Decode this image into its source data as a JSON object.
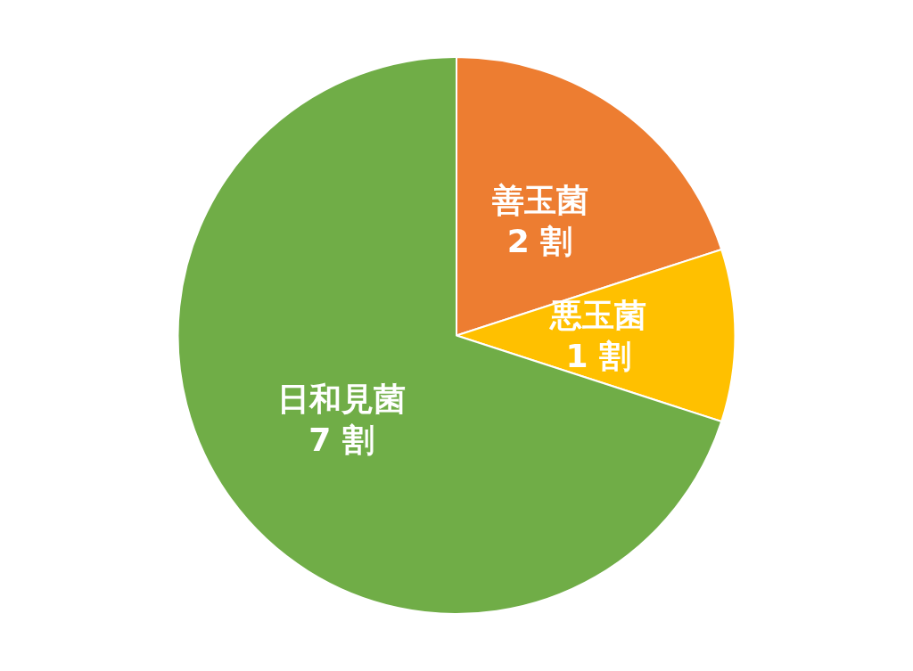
{
  "chart_data": {
    "type": "pie",
    "categories": [
      "善玉菌",
      "悪玉菌",
      "日和見菌"
    ],
    "values": [
      2,
      1,
      7
    ],
    "value_labels": [
      "2 割",
      "1 割",
      "7 割"
    ],
    "colors": [
      "#ed7d31",
      "#ffc000",
      "#70ad47"
    ],
    "legend": false
  }
}
